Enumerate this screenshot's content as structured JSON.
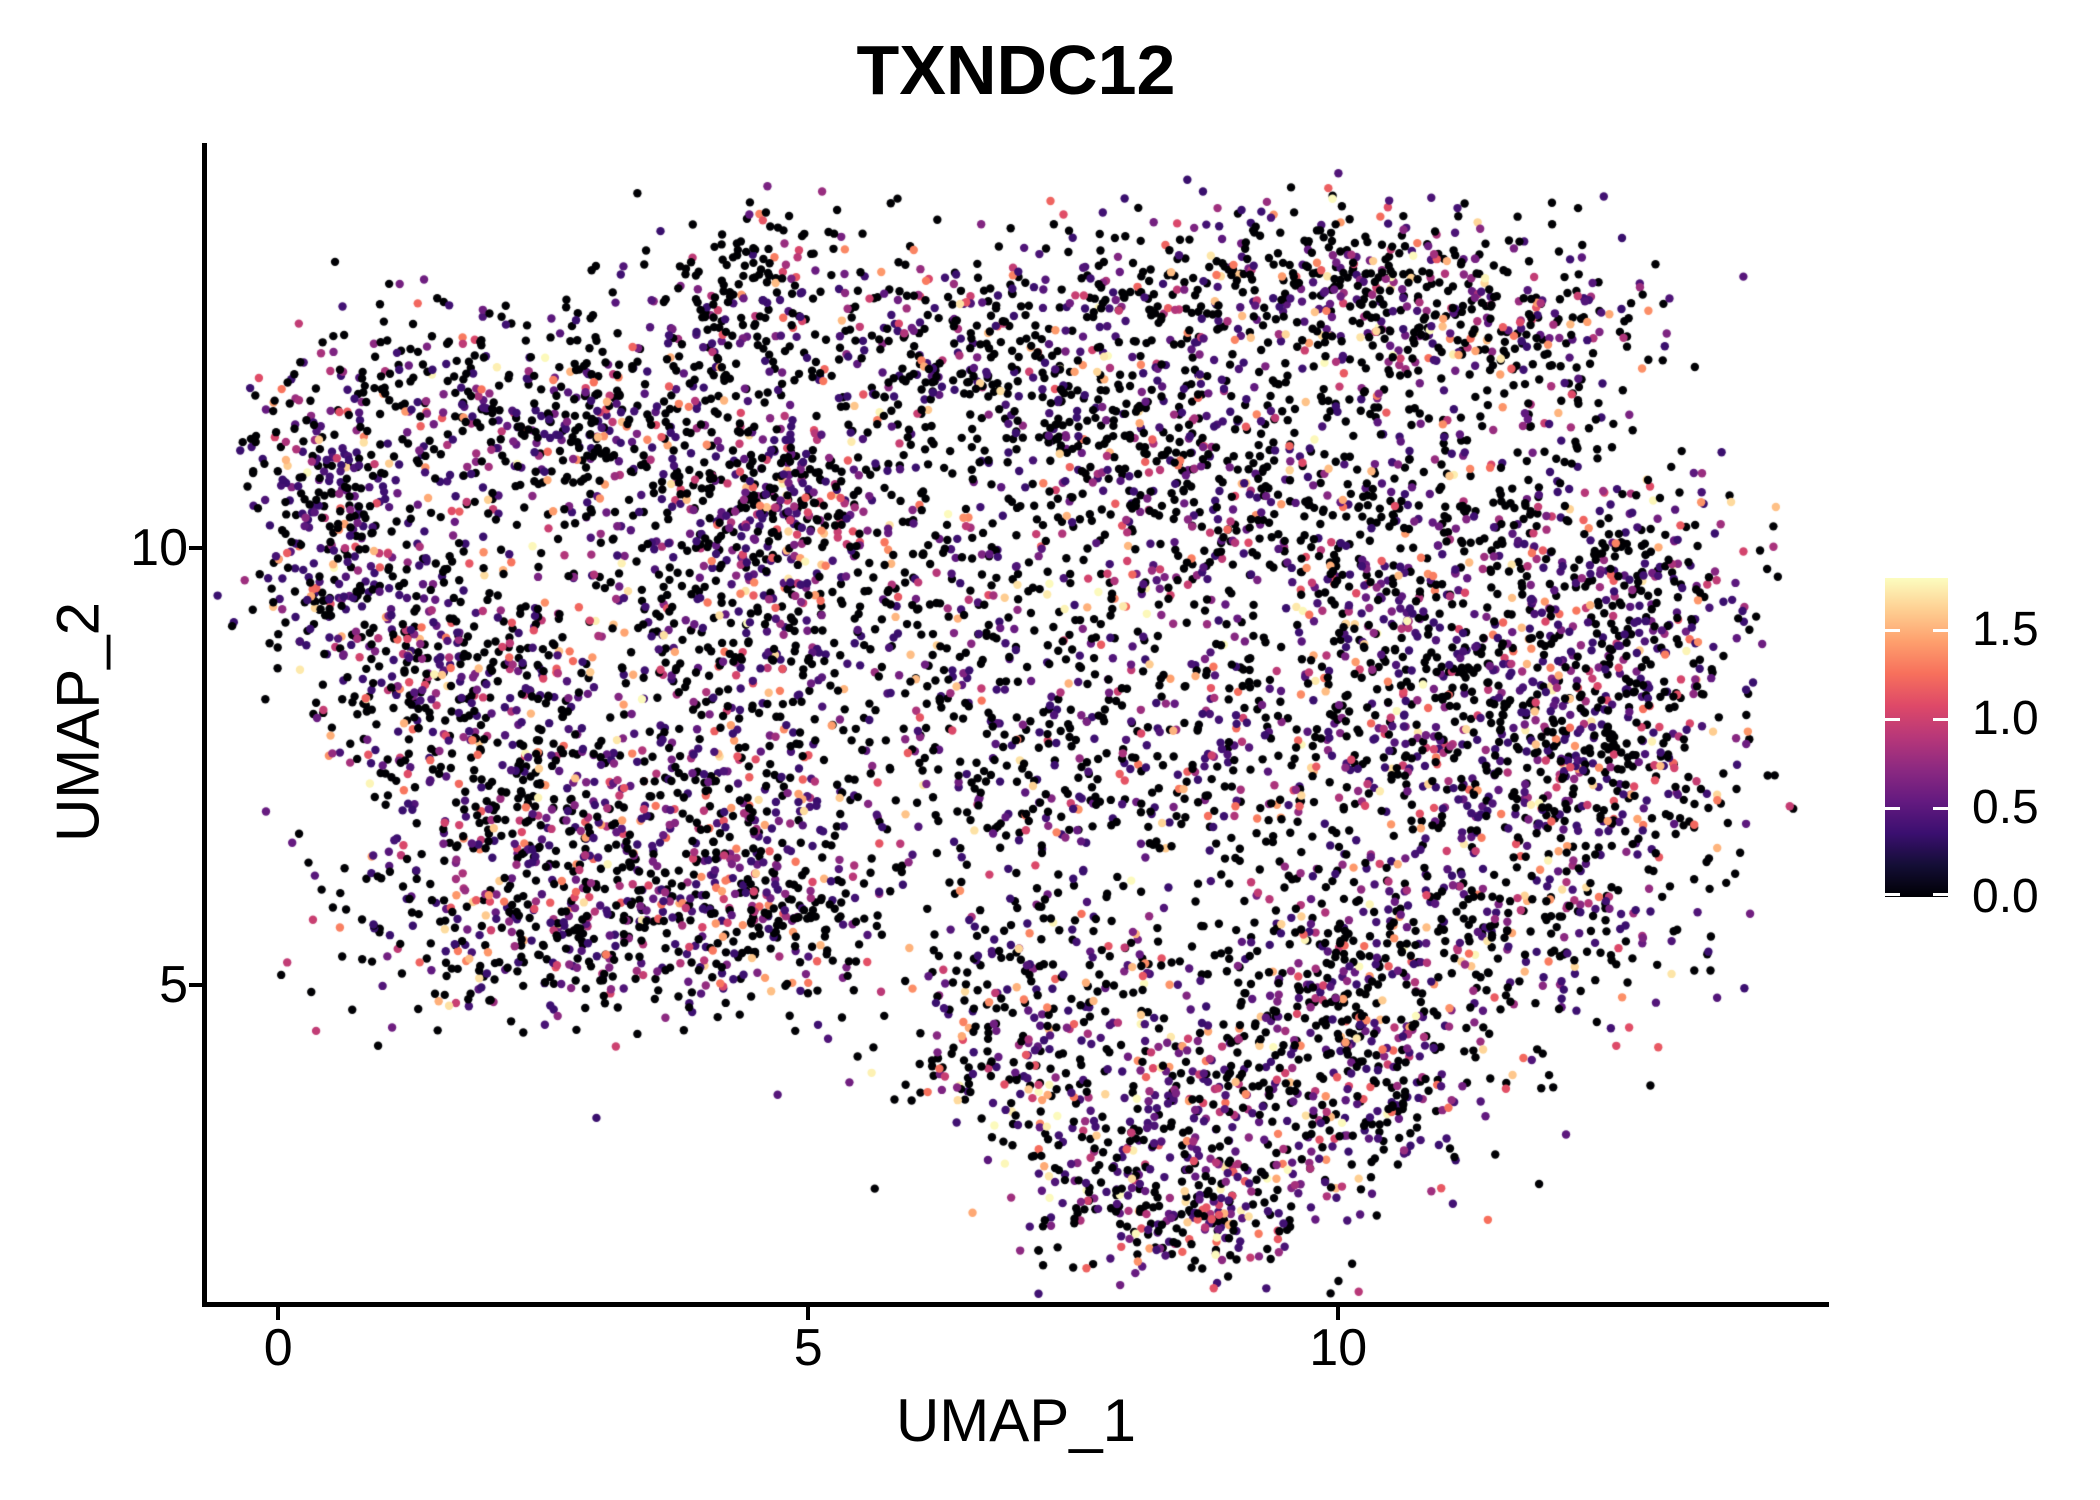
{
  "title": "TXNDC12",
  "axes": {
    "x": {
      "label": "UMAP_1",
      "tick_labels": [
        "0",
        "5",
        "10"
      ],
      "tick_values": [
        0,
        5,
        10
      ]
    },
    "y": {
      "label": "UMAP_2",
      "tick_labels": [
        "5",
        "10"
      ],
      "tick_values": [
        5,
        10
      ]
    }
  },
  "legend": {
    "tick_labels": [
      "1.5",
      "1.0",
      "0.5",
      "0.0"
    ],
    "tick_values": [
      1.5,
      1.0,
      0.5,
      0.0
    ],
    "bar_top_value": 1.79,
    "tick_color": "#ffffff"
  },
  "chart_data": {
    "type": "scatter",
    "title": "TXNDC12",
    "xlabel": "UMAP_1",
    "ylabel": "UMAP_2",
    "xlim": [
      -0.7,
      14.63
    ],
    "ylim": [
      1.37,
      14.63
    ],
    "x_ticks": [
      0,
      5,
      10
    ],
    "y_ticks": [
      5,
      10
    ],
    "grid": false,
    "legend_position": "right",
    "color_scale": {
      "name": "magma",
      "domain": [
        0.0,
        1.8
      ],
      "legend_ticks": [
        0.0,
        0.5,
        1.0,
        1.5
      ],
      "stops": [
        [
          0.0,
          "#000004"
        ],
        [
          0.1,
          "#140e36"
        ],
        [
          0.2,
          "#3b0f70"
        ],
        [
          0.3,
          "#641a80"
        ],
        [
          0.4,
          "#8c2981"
        ],
        [
          0.5,
          "#b73779"
        ],
        [
          0.6,
          "#de4968"
        ],
        [
          0.7,
          "#f7705c"
        ],
        [
          0.8,
          "#fe9f6d"
        ],
        [
          0.9,
          "#fecf92"
        ],
        [
          1.0,
          "#fcfdbf"
        ]
      ]
    },
    "point_radius_px": 4.2,
    "seed": 1337,
    "value_model": {
      "base": 0.35,
      "span": 1.45,
      "power": 2.8,
      "max": 1.79
    },
    "clusters": [
      {
        "x": 0.45,
        "y": 10.55,
        "sx": 0.38,
        "sy": 0.85,
        "n": 270,
        "p_zero": 0.42,
        "hot": 1.0
      },
      {
        "x": 1.0,
        "y": 9.1,
        "sx": 0.5,
        "sy": 0.7,
        "n": 170,
        "p_zero": 0.5,
        "hot": 1.0
      },
      {
        "x": 1.9,
        "y": 11.5,
        "sx": 0.8,
        "sy": 0.65,
        "n": 300,
        "p_zero": 0.5,
        "hot": 1.0
      },
      {
        "x": 1.7,
        "y": 8.4,
        "sx": 0.65,
        "sy": 0.85,
        "n": 240,
        "p_zero": 0.5,
        "hot": 1.0
      },
      {
        "x": 2.2,
        "y": 6.9,
        "sx": 0.8,
        "sy": 0.9,
        "n": 280,
        "p_zero": 0.5,
        "hot": 1.0
      },
      {
        "x": 2.4,
        "y": 5.5,
        "sx": 0.9,
        "sy": 0.5,
        "n": 210,
        "p_zero": 0.52,
        "hot": 1.0
      },
      {
        "x": 3.8,
        "y": 6.8,
        "sx": 1.0,
        "sy": 1.0,
        "n": 520,
        "p_zero": 0.42,
        "hot": 1.0
      },
      {
        "x": 4.6,
        "y": 5.7,
        "sx": 0.6,
        "sy": 0.5,
        "n": 170,
        "p_zero": 0.5,
        "hot": 1.0
      },
      {
        "x": 4.1,
        "y": 9.3,
        "sx": 1.0,
        "sy": 0.85,
        "n": 400,
        "p_zero": 0.5,
        "hot": 1.0
      },
      {
        "x": 4.75,
        "y": 10.6,
        "sx": 0.42,
        "sy": 0.45,
        "n": 230,
        "p_zero": 0.45,
        "hot": 1.0
      },
      {
        "x": 3.4,
        "y": 11.5,
        "sx": 0.7,
        "sy": 0.6,
        "n": 250,
        "p_zero": 0.52,
        "hot": 1.0
      },
      {
        "x": 4.4,
        "y": 13.0,
        "sx": 0.5,
        "sy": 0.48,
        "n": 160,
        "p_zero": 0.58,
        "hot": 1.0
      },
      {
        "x": 6.3,
        "y": 12.3,
        "sx": 1.0,
        "sy": 0.6,
        "n": 280,
        "p_zero": 0.6,
        "hot": 1.0
      },
      {
        "x": 6.4,
        "y": 9.8,
        "sx": 1.1,
        "sy": 1.1,
        "n": 330,
        "p_zero": 0.62,
        "hot": 1.0
      },
      {
        "x": 7.0,
        "y": 7.6,
        "sx": 1.1,
        "sy": 0.9,
        "n": 300,
        "p_zero": 0.58,
        "hot": 1.0
      },
      {
        "x": 7.9,
        "y": 11.4,
        "sx": 1.1,
        "sy": 0.7,
        "n": 330,
        "p_zero": 0.58,
        "hot": 1.0
      },
      {
        "x": 8.8,
        "y": 13.0,
        "sx": 1.05,
        "sy": 0.45,
        "n": 250,
        "p_zero": 0.62,
        "hot": 1.0
      },
      {
        "x": 10.7,
        "y": 12.8,
        "sx": 0.7,
        "sy": 0.5,
        "n": 320,
        "p_zero": 0.5,
        "hot": 1.15
      },
      {
        "x": 12.1,
        "y": 12.4,
        "sx": 0.55,
        "sy": 0.6,
        "n": 130,
        "p_zero": 0.6,
        "hot": 1.0
      },
      {
        "x": 9.1,
        "y": 10.4,
        "sx": 1.1,
        "sy": 1.1,
        "n": 380,
        "p_zero": 0.58,
        "hot": 1.0
      },
      {
        "x": 11.0,
        "y": 10.1,
        "sx": 0.9,
        "sy": 1.0,
        "n": 340,
        "p_zero": 0.55,
        "hot": 1.0
      },
      {
        "x": 9.4,
        "y": 7.5,
        "sx": 1.15,
        "sy": 1.0,
        "n": 380,
        "p_zero": 0.55,
        "hot": 1.0
      },
      {
        "x": 11.3,
        "y": 8.3,
        "sx": 0.85,
        "sy": 1.0,
        "n": 350,
        "p_zero": 0.5,
        "hot": 1.0
      },
      {
        "x": 12.55,
        "y": 7.4,
        "sx": 0.7,
        "sy": 1.25,
        "n": 540,
        "p_zero": 0.45,
        "hot": 1.0
      },
      {
        "x": 12.9,
        "y": 9.6,
        "sx": 0.5,
        "sy": 0.7,
        "n": 170,
        "p_zero": 0.5,
        "hot": 1.0
      },
      {
        "x": 11.2,
        "y": 5.5,
        "sx": 0.8,
        "sy": 0.6,
        "n": 230,
        "p_zero": 0.5,
        "hot": 1.0
      },
      {
        "x": 7.4,
        "y": 5.2,
        "sx": 0.7,
        "sy": 0.55,
        "n": 130,
        "p_zero": 0.6,
        "hot": 1.0
      },
      {
        "x": 6.7,
        "y": 4.3,
        "sx": 0.55,
        "sy": 0.6,
        "n": 140,
        "p_zero": 0.55,
        "hot": 1.0
      },
      {
        "x": 8.6,
        "y": 3.3,
        "sx": 1.05,
        "sy": 0.8,
        "n": 520,
        "p_zero": 0.42,
        "hot": 1.1
      },
      {
        "x": 8.6,
        "y": 2.35,
        "sx": 0.6,
        "sy": 0.3,
        "n": 140,
        "p_zero": 0.45,
        "hot": 1.1
      },
      {
        "x": 10.3,
        "y": 4.1,
        "sx": 0.6,
        "sy": 0.65,
        "n": 200,
        "p_zero": 0.5,
        "hot": 1.0
      },
      {
        "x": 9.7,
        "y": 5.0,
        "sx": 0.6,
        "sy": 0.5,
        "n": 140,
        "p_zero": 0.55,
        "hot": 1.0
      }
    ]
  }
}
